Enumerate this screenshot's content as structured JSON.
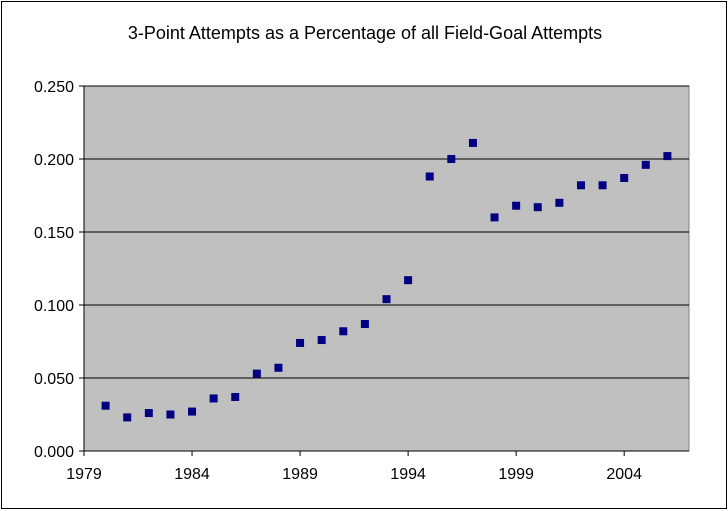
{
  "chart_data": {
    "type": "scatter",
    "title": "3-Point Attempts as a Percentage of all Field-Goal Attempts",
    "xlabel": "",
    "ylabel": "",
    "xlim": [
      1979,
      2007
    ],
    "ylim": [
      0,
      0.25
    ],
    "x_ticks": [
      "1979",
      "1984",
      "1989",
      "1994",
      "1999",
      "2004"
    ],
    "y_ticks": [
      "0.000",
      "0.050",
      "0.100",
      "0.150",
      "0.200",
      "0.250"
    ],
    "grid": "horizontal",
    "legend": "none",
    "colors": {
      "plot_background": "#c0c0c0",
      "marker": "#000080",
      "gridline": "#000000"
    },
    "series": [
      {
        "x": [
          1980,
          1981,
          1982,
          1983,
          1984,
          1985,
          1986,
          1987,
          1988,
          1989,
          1990,
          1991,
          1992,
          1993,
          1994,
          1995,
          1996,
          1997,
          1998,
          1999,
          2000,
          2001,
          2002,
          2003,
          2004,
          2005,
          2006
        ],
        "y": [
          0.031,
          0.023,
          0.026,
          0.025,
          0.027,
          0.036,
          0.037,
          0.053,
          0.057,
          0.074,
          0.076,
          0.082,
          0.087,
          0.104,
          0.117,
          0.188,
          0.2,
          0.211,
          0.16,
          0.168,
          0.167,
          0.17,
          0.182,
          0.182,
          0.187,
          0.196,
          0.202
        ]
      }
    ]
  }
}
